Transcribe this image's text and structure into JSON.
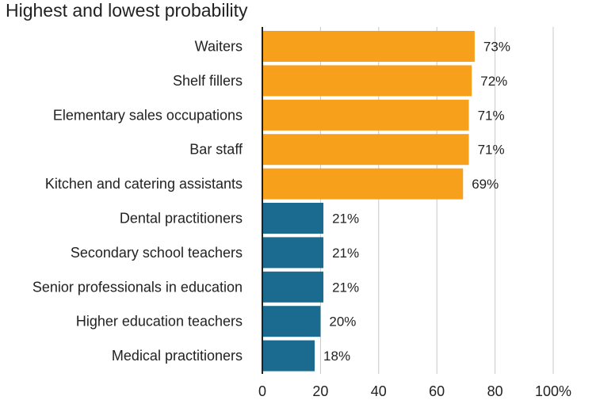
{
  "chart_data": {
    "type": "bar",
    "orientation": "horizontal",
    "title": "Highest and lowest probability",
    "categories": [
      "Waiters",
      "Shelf fillers",
      "Elementary sales occupations",
      "Bar staff",
      "Kitchen and catering assistants",
      "Dental practitioners",
      "Secondary school teachers",
      "Senior professionals in education",
      "Higher education teachers",
      "Medical practitioners"
    ],
    "values": [
      73,
      72,
      71,
      71,
      69,
      21,
      21,
      21,
      20,
      18
    ],
    "value_labels": [
      "73%",
      "72%",
      "71%",
      "71%",
      "69%",
      "21%",
      "21%",
      "21%",
      "20%",
      "18%"
    ],
    "bar_colors": [
      "#f7a01c",
      "#f7a01c",
      "#f7a01c",
      "#f7a01c",
      "#f7a01c",
      "#1a6b8f",
      "#1a6b8f",
      "#1a6b8f",
      "#1a6b8f",
      "#1a6b8f"
    ],
    "xlim": [
      0,
      100
    ],
    "x_ticks": [
      0,
      20,
      40,
      60,
      80,
      100
    ],
    "x_tick_labels": [
      "0",
      "20",
      "40",
      "60",
      "80",
      "100%"
    ],
    "grid": "vertical",
    "colors": {
      "high": "#f7a01c",
      "low": "#1a6b8f",
      "grid": "#c8c8c8",
      "axis": "#222222"
    }
  }
}
